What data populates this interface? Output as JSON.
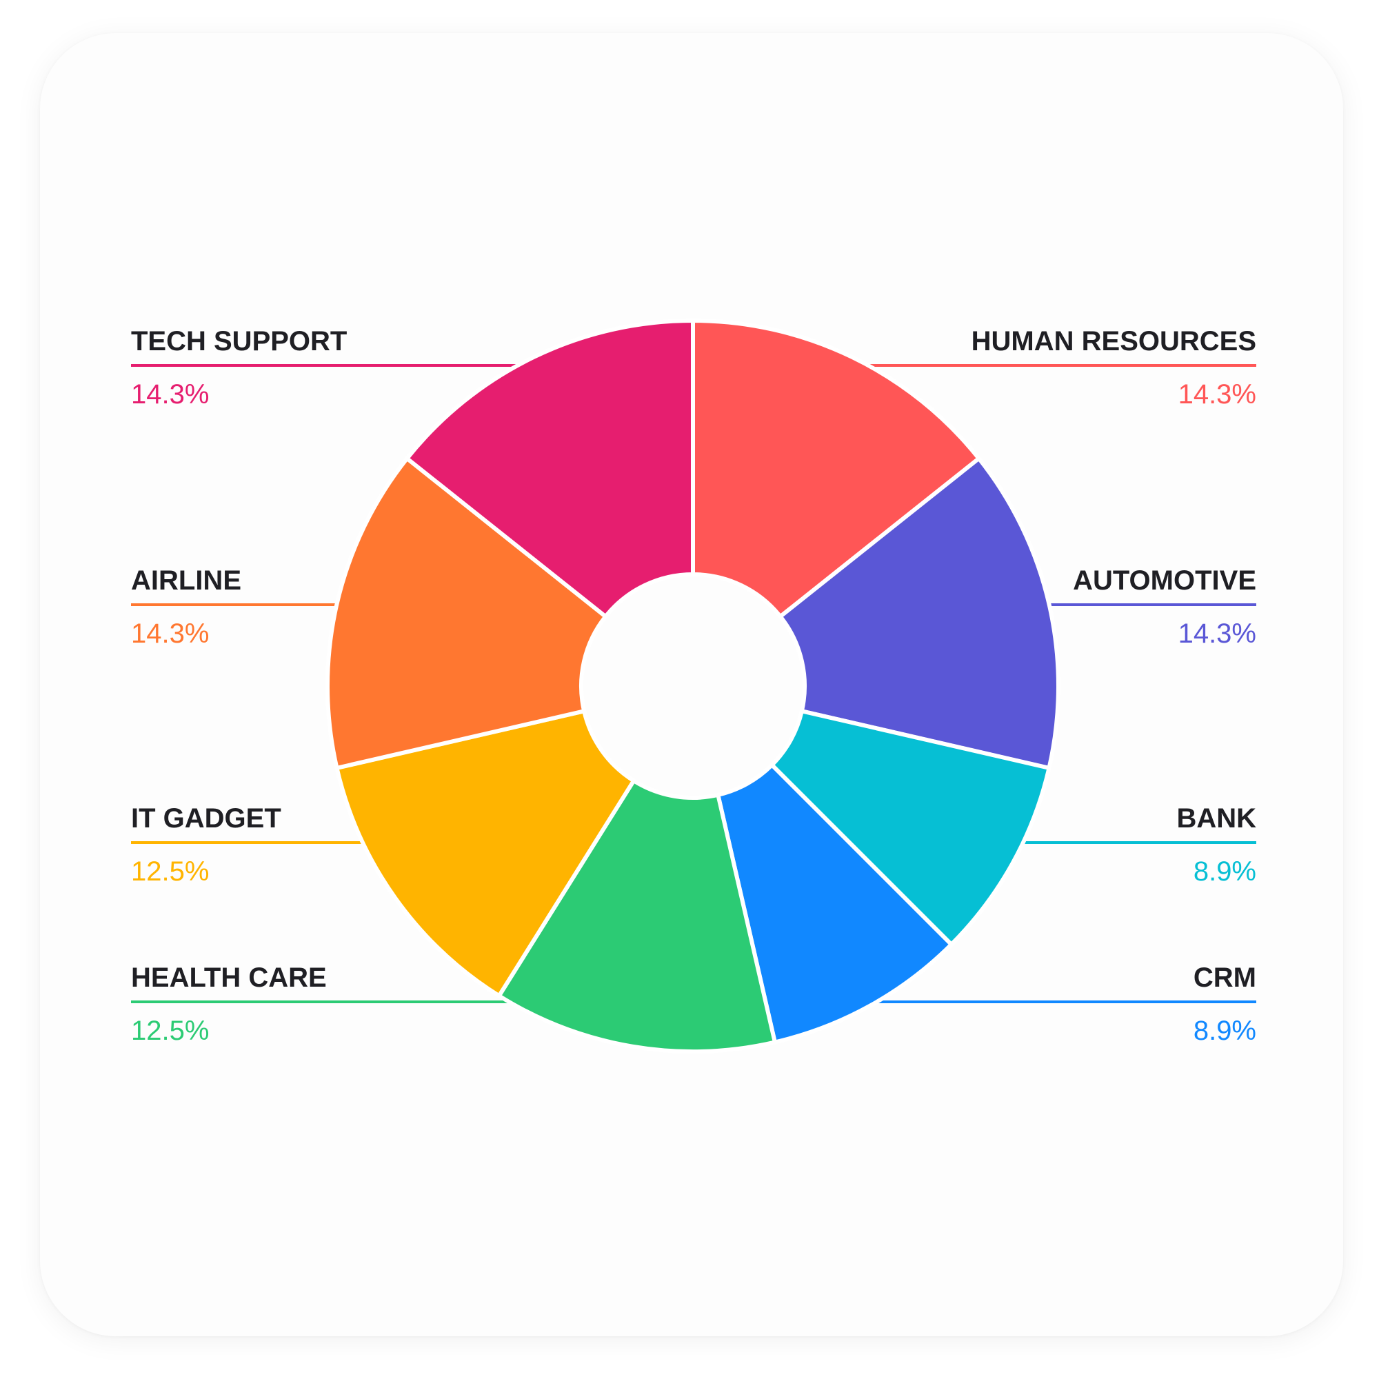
{
  "chart_data": {
    "type": "pie",
    "variant": "donut",
    "title": "",
    "slices": [
      {
        "label": "HUMAN RESOURCES",
        "value": 14.3,
        "display": "14.3%",
        "color": "#FF5656",
        "side": "right"
      },
      {
        "label": "AUTOMOTIVE",
        "value": 14.3,
        "display": "14.3%",
        "color": "#5A57D6",
        "side": "right"
      },
      {
        "label": "BANK",
        "value": 8.9,
        "display": "8.9%",
        "color": "#06BFD4",
        "side": "right"
      },
      {
        "label": "CRM",
        "value": 8.9,
        "display": "8.9%",
        "color": "#1188FF",
        "side": "right"
      },
      {
        "label": "HEALTH CARE",
        "value": 12.5,
        "display": "12.5%",
        "color": "#2CCB74",
        "side": "left"
      },
      {
        "label": "IT GADGET",
        "value": 12.5,
        "display": "12.5%",
        "color": "#FFB400",
        "side": "left"
      },
      {
        "label": "AIRLINE",
        "value": 14.3,
        "display": "14.3%",
        "color": "#FF7730",
        "side": "left"
      },
      {
        "label": "TECH SUPPORT",
        "value": 14.3,
        "display": "14.3%",
        "color": "#E61E6F",
        "side": "left"
      }
    ],
    "legend_placement": "sides"
  }
}
